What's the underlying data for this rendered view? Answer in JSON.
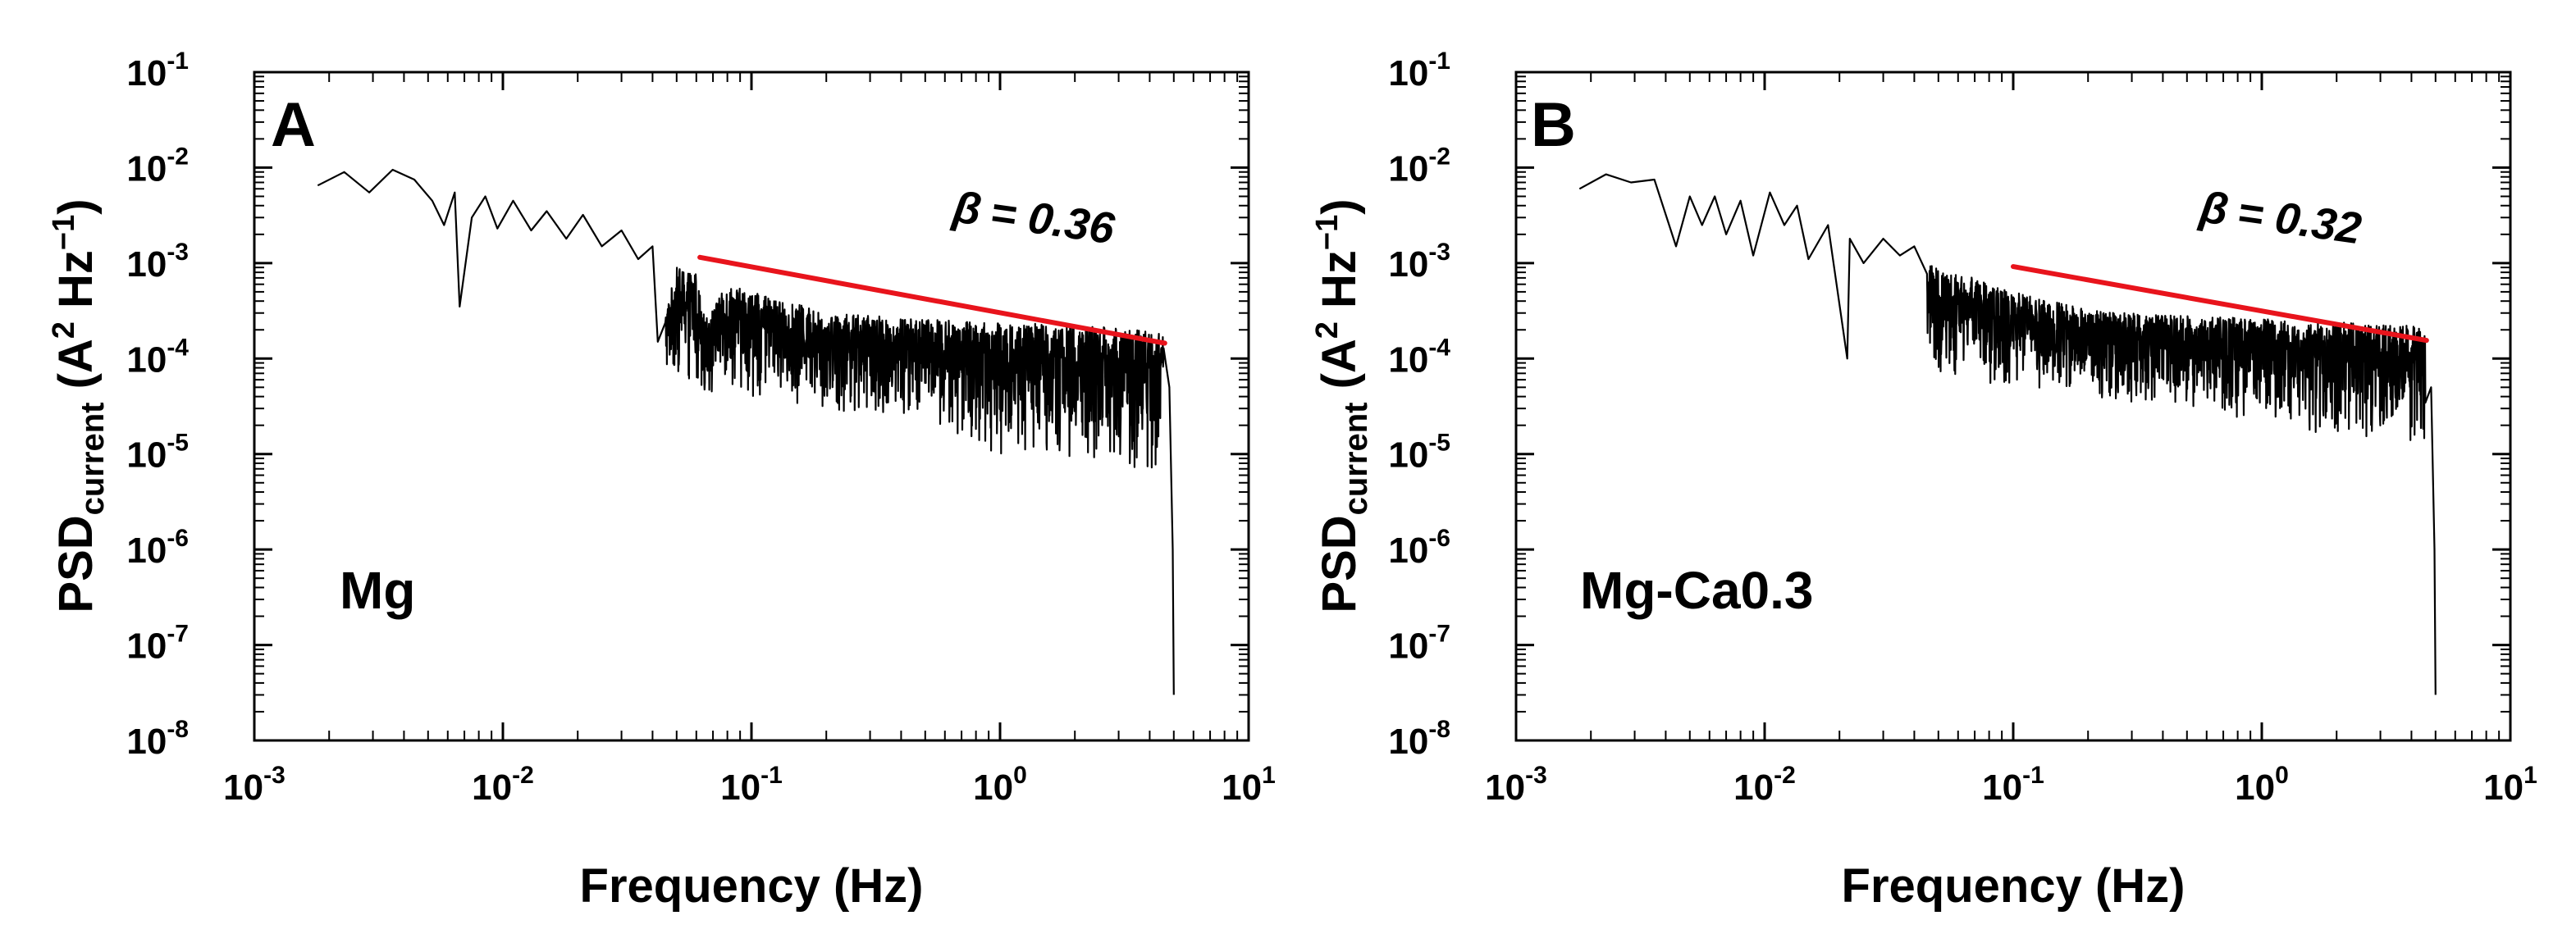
{
  "chart_data": [
    {
      "type": "line",
      "panel_label": "A",
      "annotation": "Mg",
      "slope_label": {
        "symbol": "β",
        "text": "= 0.36",
        "value": 0.36
      },
      "xlabel": "Frequency (Hz)",
      "ylabel": {
        "main": "PSD",
        "sub": "current",
        "unit_open": " (A",
        "unit_sq": "2",
        "unit_mid": " Hz",
        "unit_inv": "−1",
        "unit_close": ")"
      },
      "xscale": "log",
      "yscale": "log",
      "xlim": [
        0.001,
        10
      ],
      "ylim": [
        1e-08,
        0.1
      ],
      "x_ticks": [
        {
          "base": "10",
          "exp": "-3"
        },
        {
          "base": "10",
          "exp": "-2"
        },
        {
          "base": "10",
          "exp": "-1"
        },
        {
          "base": "10",
          "exp": "0"
        },
        {
          "base": "10",
          "exp": "1"
        }
      ],
      "y_ticks": [
        {
          "base": "10",
          "exp": "-1"
        },
        {
          "base": "10",
          "exp": "-2"
        },
        {
          "base": "10",
          "exp": "-3"
        },
        {
          "base": "10",
          "exp": "-4"
        },
        {
          "base": "10",
          "exp": "-5"
        },
        {
          "base": "10",
          "exp": "-6"
        },
        {
          "base": "10",
          "exp": "-7"
        },
        {
          "base": "10",
          "exp": "-8"
        }
      ],
      "series": [
        {
          "name": "PSD",
          "color": "#000000",
          "x": [
            0.0018,
            0.0023,
            0.0029,
            0.0036,
            0.0044,
            0.0052,
            0.0058,
            0.0064,
            0.0067,
            0.0075,
            0.0085,
            0.0095,
            0.011,
            0.013,
            0.015,
            0.018,
            0.021,
            0.025,
            0.03,
            0.035,
            0.04,
            0.042,
            0.05,
            0.06,
            0.065,
            0.08,
            0.1,
            0.13,
            0.17,
            0.2,
            0.3,
            0.5,
            0.7,
            1.0,
            1.5,
            2.0,
            3.0,
            4.0,
            4.5,
            4.8,
            4.95,
            5.0
          ],
          "y": [
            0.0065,
            0.009,
            0.0055,
            0.0095,
            0.0075,
            0.0045,
            0.0025,
            0.0055,
            0.00035,
            0.003,
            0.005,
            0.0023,
            0.0045,
            0.0022,
            0.0035,
            0.0018,
            0.0032,
            0.0015,
            0.0022,
            0.0011,
            0.0015,
            0.00015,
            0.0009,
            0.0008,
            0.00025,
            0.0006,
            0.0005,
            0.0004,
            0.00035,
            0.0003,
            0.00028,
            0.00026,
            0.00025,
            0.00024,
            0.00023,
            0.00022,
            0.00021,
            0.0002,
            0.00018,
            5e-05,
            1e-06,
            3e-08
          ],
          "min_envelope": [
            [
              0.05,
              5e-05
            ],
            [
              0.1,
              4e-05
            ],
            [
              0.2,
              3e-05
            ],
            [
              0.5,
              2e-05
            ],
            [
              1.0,
              1e-05
            ],
            [
              2.0,
              8e-06
            ],
            [
              4.0,
              7e-06
            ]
          ]
        },
        {
          "name": "fit",
          "color": "#e8141c",
          "x": [
            0.062,
            4.6
          ],
          "y": [
            0.00115,
            0.000145
          ]
        }
      ]
    },
    {
      "type": "line",
      "panel_label": "B",
      "annotation": "Mg-Ca0.3",
      "slope_label": {
        "symbol": "β",
        "text": "= 0.32",
        "value": 0.32
      },
      "xlabel": "Frequency (Hz)",
      "ylabel": {
        "main": "PSD",
        "sub": "current",
        "unit_open": " (A",
        "unit_sq": "2",
        "unit_mid": " Hz",
        "unit_inv": "−1",
        "unit_close": ")"
      },
      "xscale": "log",
      "yscale": "log",
      "xlim": [
        0.001,
        10
      ],
      "ylim": [
        1e-08,
        0.1
      ],
      "x_ticks": [
        {
          "base": "10",
          "exp": "-3"
        },
        {
          "base": "10",
          "exp": "-2"
        },
        {
          "base": "10",
          "exp": "-1"
        },
        {
          "base": "10",
          "exp": "0"
        },
        {
          "base": "10",
          "exp": "1"
        }
      ],
      "y_ticks": [
        {
          "base": "10",
          "exp": "-1"
        },
        {
          "base": "10",
          "exp": "-2"
        },
        {
          "base": "10",
          "exp": "-3"
        },
        {
          "base": "10",
          "exp": "-4"
        },
        {
          "base": "10",
          "exp": "-5"
        },
        {
          "base": "10",
          "exp": "-6"
        },
        {
          "base": "10",
          "exp": "-7"
        },
        {
          "base": "10",
          "exp": "-8"
        }
      ],
      "series": [
        {
          "name": "PSD",
          "color": "#000000",
          "x": [
            0.0018,
            0.0023,
            0.0029,
            0.0036,
            0.0044,
            0.005,
            0.0056,
            0.0063,
            0.007,
            0.008,
            0.009,
            0.0105,
            0.012,
            0.0135,
            0.015,
            0.018,
            0.0215,
            0.022,
            0.025,
            0.03,
            0.035,
            0.04,
            0.05,
            0.06,
            0.08,
            0.1,
            0.13,
            0.17,
            0.2,
            0.3,
            0.5,
            0.7,
            1.0,
            1.5,
            2.0,
            3.0,
            4.0,
            4.5,
            4.8,
            4.95,
            5.0
          ],
          "y": [
            0.006,
            0.0085,
            0.007,
            0.0075,
            0.0015,
            0.005,
            0.0025,
            0.005,
            0.002,
            0.0045,
            0.0012,
            0.0055,
            0.0025,
            0.004,
            0.0011,
            0.0025,
            0.0001,
            0.0018,
            0.001,
            0.0018,
            0.0012,
            0.0015,
            0.00085,
            0.0008,
            0.0006,
            0.0005,
            0.00042,
            0.00036,
            0.00032,
            0.0003,
            0.00028,
            0.00027,
            0.00026,
            0.00025,
            0.00024,
            0.00023,
            0.00022,
            0.0002,
            5e-05,
            1e-06,
            3e-08
          ],
          "min_envelope": [
            [
              0.05,
              6e-05
            ],
            [
              0.1,
              5e-05
            ],
            [
              0.2,
              4e-05
            ],
            [
              0.5,
              3e-05
            ],
            [
              1.0,
              2e-05
            ],
            [
              2.0,
              1.5e-05
            ],
            [
              4.0,
              1.2e-05
            ]
          ]
        },
        {
          "name": "fit",
          "color": "#e8141c",
          "x": [
            0.1,
            4.6
          ],
          "y": [
            0.00092,
            0.000155
          ]
        }
      ]
    }
  ]
}
